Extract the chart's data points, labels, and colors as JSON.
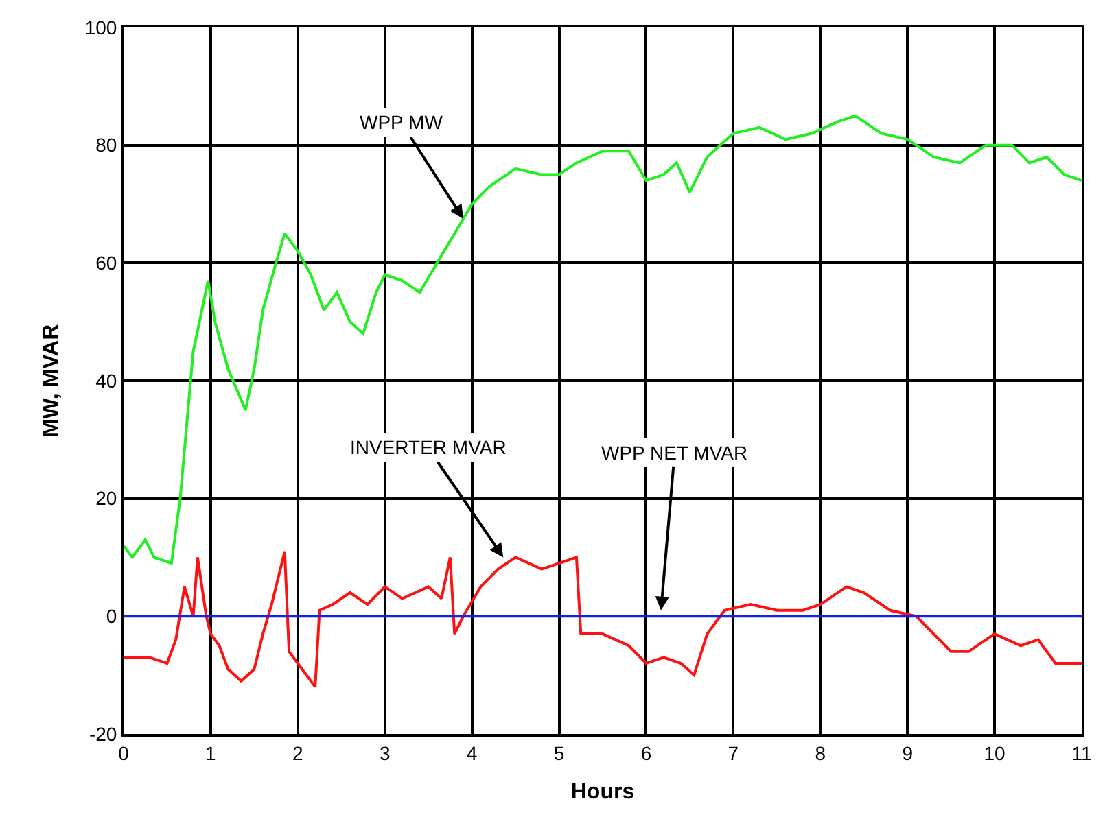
{
  "chart_data": {
    "type": "line",
    "xlabel": "Hours",
    "ylabel": "MW, MVAR",
    "xlim": [
      0,
      11
    ],
    "xticks": [
      0,
      1,
      2,
      3,
      4,
      5,
      6,
      7,
      8,
      9,
      10,
      11
    ],
    "ylim": [
      -20,
      100
    ],
    "yticks": [
      -20,
      0,
      20,
      40,
      60,
      80,
      100
    ],
    "grid": true,
    "marker": "none",
    "line_style": "solid",
    "series": [
      {
        "color": "#22ee22",
        "x": [
          0,
          0.1,
          0.25,
          0.35,
          0.55,
          0.65,
          0.8,
          0.9,
          0.97,
          1.05,
          1.2,
          1.4,
          1.5,
          1.6,
          1.75,
          1.85,
          2.0,
          2.15,
          2.3,
          2.45,
          2.6,
          2.75,
          2.9,
          3.0,
          3.2,
          3.4,
          3.6,
          3.8,
          4.0,
          4.2,
          4.5,
          4.8,
          5.0,
          5.2,
          5.5,
          5.8,
          6.0,
          6.2,
          6.35,
          6.5,
          6.7,
          7.0,
          7.3,
          7.6,
          7.9,
          8.2,
          8.4,
          8.7,
          9.0,
          9.3,
          9.6,
          9.9,
          10.2,
          10.4,
          10.6,
          10.8,
          11
        ],
        "values": [
          12,
          10,
          13,
          10,
          9,
          20,
          45,
          52,
          57,
          50,
          42,
          35,
          42,
          52,
          60,
          65,
          62,
          58,
          52,
          55,
          50,
          48,
          55,
          58,
          57,
          55,
          60,
          65,
          70,
          73,
          76,
          75,
          75,
          77,
          79,
          79,
          74,
          75,
          77,
          72,
          78,
          82,
          83,
          81,
          82,
          84,
          85,
          82,
          81,
          78,
          77,
          80,
          80,
          77,
          78,
          75,
          74
        ]
      },
      {
        "color": "#ff1111",
        "x": [
          0,
          0.3,
          0.5,
          0.6,
          0.7,
          0.8,
          0.85,
          0.95,
          1.0,
          1.1,
          1.2,
          1.35,
          1.5,
          1.6,
          1.7,
          1.8,
          1.85,
          1.9,
          2.0,
          2.2,
          2.25,
          2.4,
          2.6,
          2.8,
          3.0,
          3.2,
          3.5,
          3.65,
          3.75,
          3.8,
          3.9,
          4.1,
          4.3,
          4.5,
          4.8,
          5.0,
          5.2,
          5.25,
          5.5,
          5.8,
          6.0,
          6.2,
          6.4,
          6.55,
          6.7,
          6.9,
          7.2,
          7.5,
          7.8,
          8.0,
          8.3,
          8.5,
          8.8,
          9.1,
          9.3,
          9.5,
          9.7,
          10.0,
          10.3,
          10.5,
          10.7,
          11
        ],
        "values": [
          -7,
          -7,
          -8,
          -4,
          5,
          0,
          10,
          0,
          -3,
          -5,
          -9,
          -11,
          -9,
          -3,
          2,
          8,
          11,
          -6,
          -8,
          -12,
          1,
          2,
          4,
          2,
          5,
          3,
          5,
          3,
          10,
          -3,
          0,
          5,
          8,
          10,
          8,
          9,
          10,
          -3,
          -3,
          -5,
          -8,
          -7,
          -8,
          -10,
          -3,
          1,
          2,
          1,
          1,
          2,
          5,
          4,
          1,
          0,
          -3,
          -6,
          -6,
          -3,
          -5,
          -4,
          -8,
          -8
        ]
      },
      {
        "color": "#1122ee",
        "x": [
          0,
          2,
          4,
          6,
          8,
          11
        ],
        "values": [
          0,
          0,
          0,
          0,
          0,
          0
        ]
      }
    ],
    "annotations": [
      {
        "text": "WPP MW",
        "x": 3.9,
        "y": 67.5
      },
      {
        "text": "INVERTER MVAR",
        "x": 4.36,
        "y": 10
      },
      {
        "text": "WPP NET MVAR",
        "x": 6.17,
        "y": 1
      }
    ]
  }
}
